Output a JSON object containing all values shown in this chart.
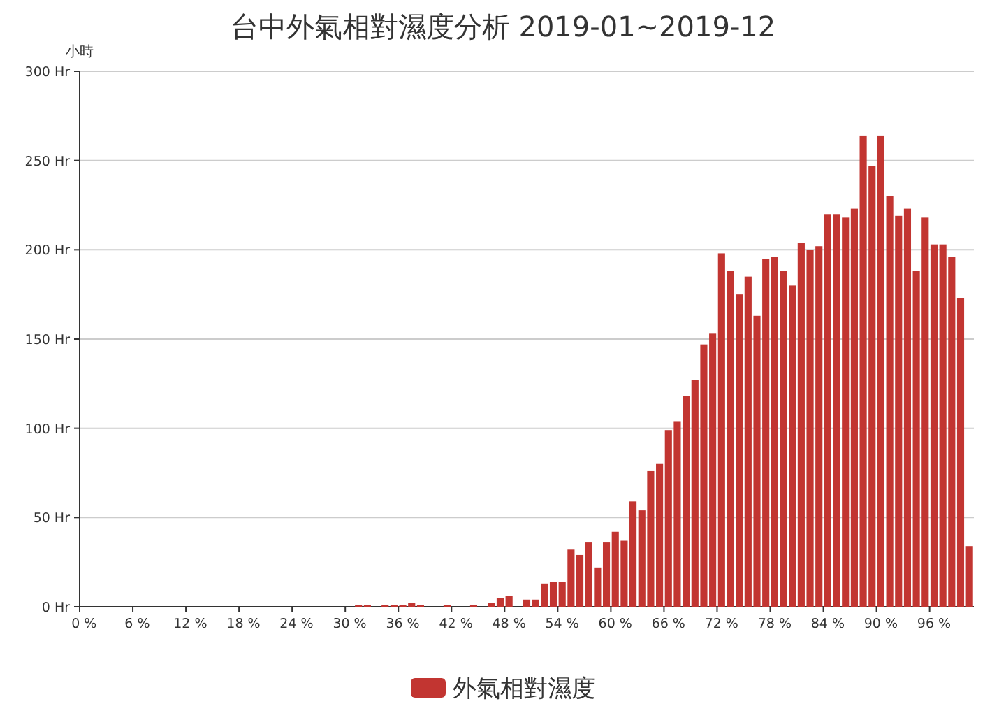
{
  "chart_data": {
    "type": "bar",
    "title": "台中外氣相對濕度分析 2019-01~2019-12",
    "ylabel": "小時",
    "categories": [
      "0 %",
      null,
      null,
      null,
      null,
      null,
      "6 %",
      null,
      null,
      null,
      null,
      null,
      "12 %",
      null,
      null,
      null,
      null,
      null,
      "18 %",
      null,
      null,
      null,
      null,
      null,
      "24 %",
      null,
      null,
      null,
      null,
      null,
      "30 %",
      null,
      null,
      null,
      null,
      null,
      "36 %",
      null,
      null,
      null,
      null,
      null,
      "42 %",
      null,
      null,
      null,
      null,
      null,
      "48 %",
      null,
      null,
      null,
      null,
      null,
      "54 %",
      null,
      null,
      null,
      null,
      null,
      "60 %",
      null,
      null,
      null,
      null,
      null,
      "66 %",
      null,
      null,
      null,
      null,
      null,
      "72 %",
      null,
      null,
      null,
      null,
      null,
      "78 %",
      null,
      null,
      null,
      null,
      null,
      "84 %",
      null,
      null,
      null,
      null,
      null,
      "90 %",
      null,
      null,
      null,
      null,
      null,
      "96 %",
      null,
      null,
      null,
      null
    ],
    "series": [
      {
        "name": "外氣相對濕度",
        "color": "#c23531",
        "values": [
          0,
          0,
          0,
          0,
          0,
          0,
          0,
          0,
          0,
          0,
          0,
          0,
          0,
          0,
          0,
          0,
          0,
          0,
          0,
          0,
          0,
          0,
          0,
          0,
          0,
          0,
          0,
          0,
          0,
          0,
          0,
          1,
          1,
          0,
          1,
          1,
          1,
          2,
          1,
          0,
          0,
          1,
          0,
          0,
          1,
          0,
          2,
          5,
          6,
          0,
          4,
          4,
          13,
          14,
          14,
          32,
          29,
          36,
          22,
          36,
          42,
          37,
          59,
          54,
          76,
          80,
          99,
          104,
          118,
          127,
          147,
          153,
          198,
          188,
          175,
          185,
          163,
          195,
          196,
          188,
          180,
          204,
          200,
          202,
          220,
          220,
          218,
          223,
          264,
          247,
          264,
          230,
          219,
          223,
          188,
          218,
          203,
          203,
          196,
          173,
          34
        ]
      }
    ],
    "ylim": [
      0,
      300
    ],
    "yticks": [
      {
        "value": 0,
        "label": "0 Hr"
      },
      {
        "value": 50,
        "label": "50 Hr"
      },
      {
        "value": 100,
        "label": "100 Hr"
      },
      {
        "value": 150,
        "label": "150 Hr"
      },
      {
        "value": 200,
        "label": "200 Hr"
      },
      {
        "value": 250,
        "label": "250 Hr"
      },
      {
        "value": 300,
        "label": "300 Hr"
      }
    ],
    "grid": "y",
    "legend": "bottom"
  }
}
